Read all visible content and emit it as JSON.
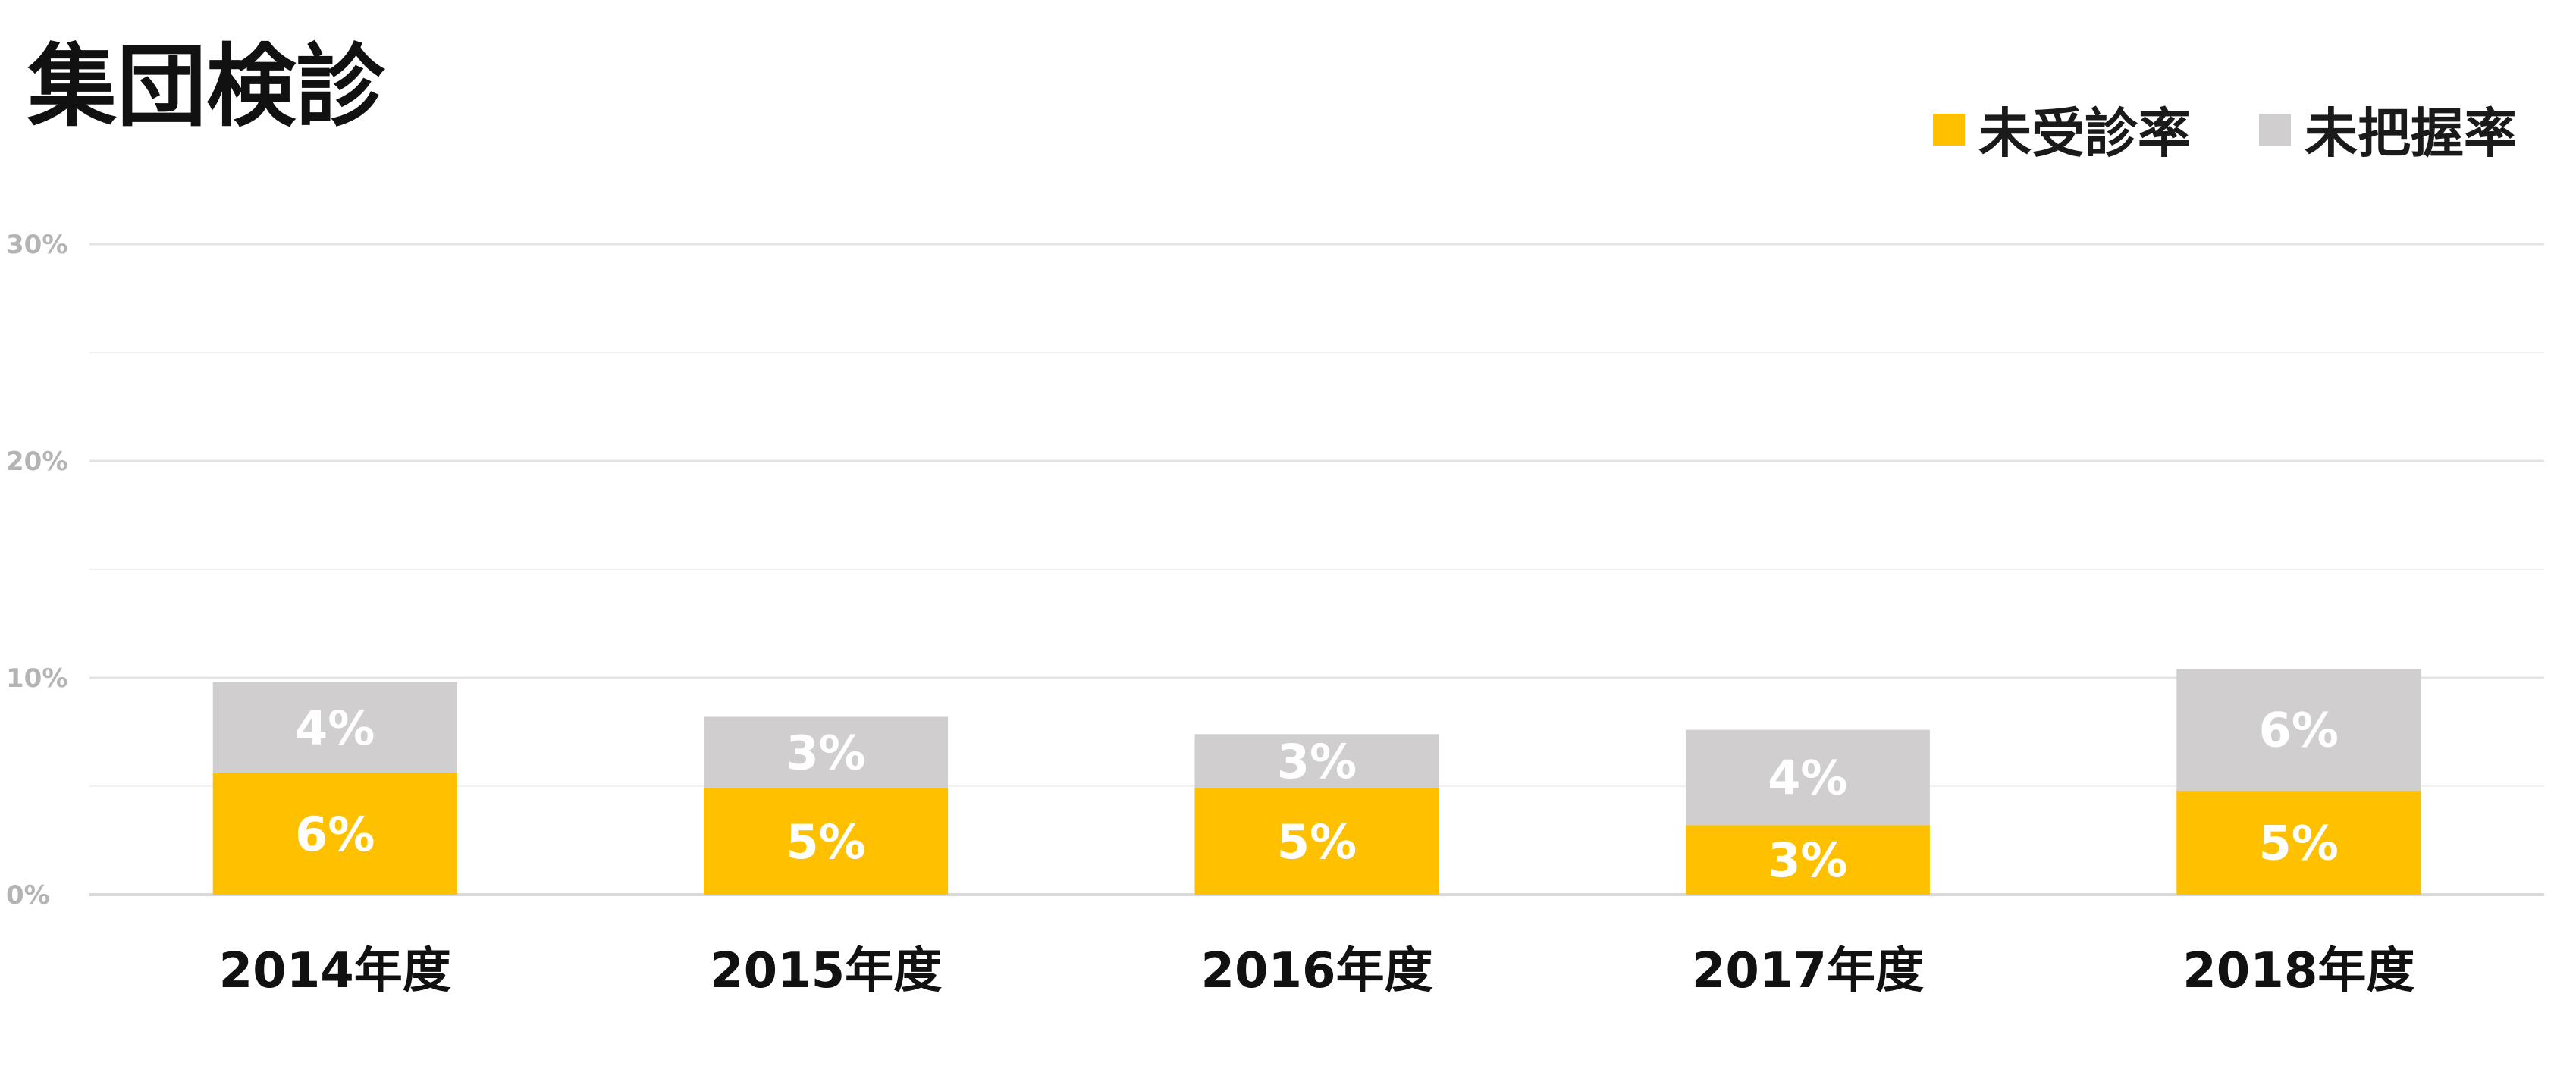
{
  "chart_data": {
    "type": "bar",
    "stacked": true,
    "title": "集団検診",
    "categories": [
      "2014年度",
      "2015年度",
      "2016年度",
      "2017年度",
      "2018年度"
    ],
    "series": [
      {
        "name": "未受診率",
        "color": "#FFC000",
        "values": [
          5.6,
          4.9,
          4.9,
          3.2,
          4.8
        ],
        "labels": [
          "6%",
          "5%",
          "5%",
          "3%",
          "5%"
        ]
      },
      {
        "name": "未把握率",
        "color": "#D0CECE",
        "values": [
          4.2,
          3.3,
          2.5,
          4.4,
          5.6
        ],
        "labels": [
          "4%",
          "3%",
          "3%",
          "4%",
          "6%"
        ]
      }
    ],
    "ylim": [
      0,
      30
    ],
    "yticks": [
      0,
      10,
      20,
      30
    ],
    "ytick_labels": [
      "0%",
      "10%",
      "20%",
      "30%"
    ],
    "grid": true,
    "legend_position": "top-right",
    "xlabel": "",
    "ylabel": ""
  }
}
